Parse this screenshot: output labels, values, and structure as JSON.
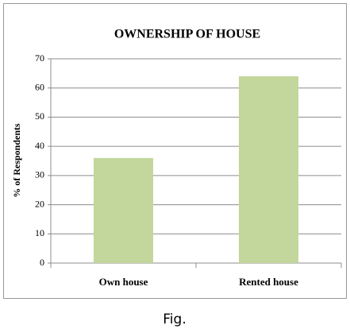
{
  "chart_data": {
    "type": "bar",
    "title": "OWNERSHIP OF HOUSE",
    "y_label": "% of Respondents",
    "categories": [
      "Own house",
      "Rented house"
    ],
    "values": [
      36,
      64
    ],
    "color": "#c3d69b",
    "ylim": [
      0,
      70
    ],
    "yticks": [
      0,
      10,
      20,
      30,
      40,
      50,
      60,
      70
    ],
    "grid": true
  },
  "caption": "Fig."
}
